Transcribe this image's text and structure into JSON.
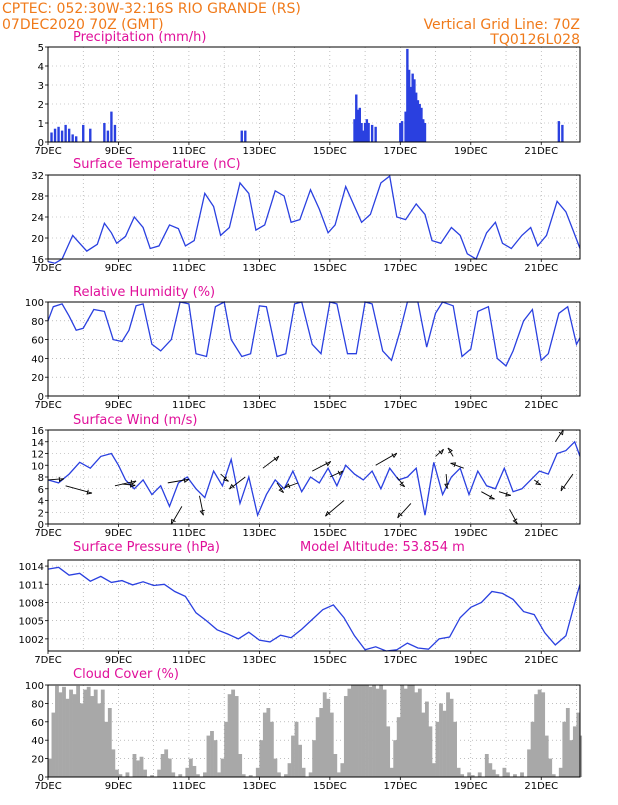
{
  "header": {
    "line1": "CPTEC:    052:30W-32:16S   RIO GRANDE (RS)",
    "line2": "07DEC2020 70Z (GMT)",
    "right1": "Vertical Grid Line: 70Z",
    "right2": "TQ0126L028",
    "altitude": "Model Altitude: 53.854  m"
  },
  "colors": {
    "header": "#f07a1a",
    "title": "#e0109a",
    "line": "#2a40e0",
    "bar": "#2a40e0",
    "cloud": "#a8a8a8",
    "grid": "#999999"
  },
  "x_axis": {
    "ticks": [
      {
        "day": 7,
        "label": "7DEC"
      },
      {
        "day": 9,
        "label": "9DEC"
      },
      {
        "day": 11,
        "label": "11DEC"
      },
      {
        "day": 13,
        "label": "13DEC"
      },
      {
        "day": 15,
        "label": "15DEC"
      },
      {
        "day": 17,
        "label": "17DEC"
      },
      {
        "day": 19,
        "label": "19DEC"
      },
      {
        "day": 21,
        "label": "21DEC"
      }
    ],
    "range": [
      7,
      22.1
    ]
  },
  "chart_data": [
    {
      "type": "bar",
      "title": "Precipitation (mm/h)",
      "x_unit": "day of month (DEC 2020)",
      "ylim": [
        0,
        5
      ],
      "yticks": [
        "0",
        "1",
        "2",
        "3",
        "4",
        "5"
      ],
      "x": [
        7.1,
        7.2,
        7.3,
        7.4,
        7.5,
        7.6,
        7.7,
        7.8,
        8.0,
        8.2,
        8.6,
        8.7,
        8.8,
        8.9,
        12.5,
        12.6,
        15.7,
        15.75,
        15.8,
        15.85,
        15.9,
        15.95,
        16.0,
        16.05,
        16.1,
        16.2,
        16.3,
        17.0,
        17.05,
        17.15,
        17.2,
        17.25,
        17.3,
        17.35,
        17.4,
        17.45,
        17.5,
        17.55,
        17.6,
        17.65,
        17.7,
        21.5,
        21.6
      ],
      "values": [
        0.5,
        0.7,
        0.8,
        0.6,
        0.9,
        0.7,
        0.4,
        0.3,
        0.9,
        0.7,
        1.0,
        0.6,
        1.6,
        0.9,
        0.6,
        0.6,
        1.2,
        2.5,
        1.7,
        1.8,
        1.0,
        0.6,
        1.0,
        1.2,
        1.0,
        0.9,
        0.8,
        1.0,
        1.1,
        1.6,
        4.9,
        3.8,
        2.9,
        3.6,
        3.3,
        2.6,
        2.2,
        2.0,
        1.8,
        1.2,
        1.0,
        1.1,
        0.9
      ]
    },
    {
      "type": "line",
      "title": "Surface Temperature (nC)",
      "ylim": [
        16,
        32
      ],
      "yticks": [
        "16",
        "20",
        "24",
        "28",
        "32"
      ],
      "x": [
        7.0,
        7.2,
        7.4,
        7.7,
        7.9,
        8.1,
        8.4,
        8.6,
        8.8,
        8.95,
        9.2,
        9.45,
        9.7,
        9.9,
        10.15,
        10.45,
        10.7,
        10.9,
        11.15,
        11.45,
        11.7,
        11.9,
        12.15,
        12.45,
        12.7,
        12.9,
        13.15,
        13.45,
        13.7,
        13.9,
        14.15,
        14.45,
        14.7,
        14.95,
        15.15,
        15.45,
        15.7,
        15.9,
        16.15,
        16.45,
        16.7,
        16.9,
        17.15,
        17.45,
        17.7,
        17.9,
        18.15,
        18.45,
        18.7,
        18.9,
        19.15,
        19.45,
        19.7,
        19.9,
        20.15,
        20.45,
        20.7,
        20.9,
        21.15,
        21.45,
        21.7,
        21.9,
        22.1
      ],
      "values": [
        15.5,
        15.2,
        16.0,
        20.5,
        19.0,
        17.5,
        18.8,
        22.8,
        21.0,
        19.0,
        20.3,
        24.0,
        22.0,
        18.0,
        18.5,
        22.5,
        21.8,
        18.5,
        19.5,
        28.5,
        26.0,
        20.5,
        22.0,
        30.5,
        28.5,
        21.5,
        22.5,
        29.0,
        28.0,
        23.0,
        23.5,
        29.2,
        25.5,
        21.0,
        22.5,
        29.8,
        26.0,
        23.0,
        24.5,
        30.5,
        31.8,
        24.0,
        23.5,
        26.5,
        24.5,
        19.5,
        19.0,
        22.0,
        20.5,
        17.0,
        16.0,
        21.0,
        23.0,
        19.0,
        18.0,
        20.5,
        22.0,
        18.5,
        20.5,
        27.0,
        25.0,
        21.5,
        18.0
      ]
    },
    {
      "type": "line",
      "title": "Relative Humidity (%)",
      "ylim": [
        0,
        100
      ],
      "yticks": [
        "0",
        "20",
        "40",
        "60",
        "80",
        "100"
      ],
      "x": [
        7.0,
        7.15,
        7.4,
        7.6,
        7.8,
        8.0,
        8.3,
        8.6,
        8.85,
        9.1,
        9.3,
        9.5,
        9.7,
        9.95,
        10.2,
        10.5,
        10.75,
        11.0,
        11.2,
        11.5,
        11.75,
        12.0,
        12.2,
        12.5,
        12.75,
        13.0,
        13.2,
        13.5,
        13.75,
        14.0,
        14.2,
        14.5,
        14.75,
        15.0,
        15.2,
        15.5,
        15.75,
        16.0,
        16.2,
        16.5,
        16.75,
        17.0,
        17.2,
        17.5,
        17.75,
        18.0,
        18.2,
        18.5,
        18.75,
        19.0,
        19.2,
        19.5,
        19.75,
        20.0,
        20.2,
        20.5,
        20.75,
        21.0,
        21.2,
        21.5,
        21.75,
        22.0,
        22.1
      ],
      "values": [
        80,
        95,
        98,
        85,
        70,
        72,
        92,
        90,
        60,
        58,
        70,
        96,
        98,
        55,
        48,
        60,
        100,
        98,
        45,
        42,
        95,
        100,
        60,
        42,
        45,
        96,
        95,
        42,
        45,
        98,
        100,
        55,
        45,
        100,
        98,
        45,
        45,
        100,
        98,
        48,
        38,
        70,
        100,
        100,
        52,
        88,
        100,
        96,
        42,
        50,
        90,
        95,
        40,
        32,
        48,
        80,
        92,
        38,
        45,
        88,
        95,
        55,
        62
      ]
    },
    {
      "type": "line",
      "title": "Surface Wind (m/s)",
      "ylim": [
        0,
        16
      ],
      "yticks": [
        "0",
        "2",
        "4",
        "6",
        "8",
        "10",
        "12",
        "14",
        "16"
      ],
      "x": [
        7.0,
        7.3,
        7.6,
        7.9,
        8.2,
        8.5,
        8.8,
        9.0,
        9.2,
        9.45,
        9.7,
        9.95,
        10.2,
        10.45,
        10.7,
        10.95,
        11.2,
        11.45,
        11.7,
        11.95,
        12.2,
        12.45,
        12.7,
        12.95,
        13.2,
        13.45,
        13.7,
        13.95,
        14.2,
        14.45,
        14.7,
        14.95,
        15.2,
        15.45,
        15.7,
        15.95,
        16.2,
        16.45,
        16.7,
        16.95,
        17.2,
        17.45,
        17.7,
        17.95,
        18.2,
        18.45,
        18.7,
        18.95,
        19.2,
        19.45,
        19.7,
        19.95,
        20.2,
        20.45,
        20.7,
        20.95,
        21.2,
        21.45,
        21.7,
        21.95,
        22.1
      ],
      "values": [
        7.5,
        7.0,
        8.5,
        10.5,
        9.5,
        11.5,
        12.0,
        10.0,
        7.5,
        6.0,
        7.5,
        5.0,
        6.5,
        3.0,
        7.0,
        8.0,
        6.0,
        4.5,
        9.0,
        6.5,
        11.0,
        3.5,
        8.0,
        1.5,
        5.0,
        7.5,
        6.0,
        9.0,
        5.5,
        8.0,
        7.0,
        9.5,
        6.5,
        10.0,
        8.5,
        7.5,
        9.0,
        6.0,
        9.5,
        7.5,
        8.0,
        9.5,
        1.5,
        10.5,
        5.0,
        8.0,
        9.5,
        5.0,
        9.0,
        6.5,
        6.0,
        9.5,
        5.5,
        6.0,
        7.5,
        9.0,
        8.5,
        12.0,
        12.5,
        14.0,
        11.5
      ],
      "arrows": [
        {
          "x": 7.0,
          "y": 7.5,
          "u": 1.2,
          "v": -0.1
        },
        {
          "x": 7.5,
          "y": 6.5,
          "u": 2.0,
          "v": 0.6
        },
        {
          "x": 8.9,
          "y": 6.5,
          "u": 1.6,
          "v": -0.4
        },
        {
          "x": 9.1,
          "y": 6.8,
          "u": 1.0,
          "v": 0.1
        },
        {
          "x": 10.4,
          "y": 7.0,
          "u": 1.6,
          "v": -0.3
        },
        {
          "x": 10.8,
          "y": 3.0,
          "u": -0.8,
          "v": 1.5
        },
        {
          "x": 11.3,
          "y": 4.8,
          "u": 0.3,
          "v": 1.6
        },
        {
          "x": 11.9,
          "y": 8.5,
          "u": 0.6,
          "v": 0.6
        },
        {
          "x": 12.6,
          "y": 8.0,
          "u": -1.2,
          "v": 1.0
        },
        {
          "x": 13.1,
          "y": 9.5,
          "u": 1.2,
          "v": -1.0
        },
        {
          "x": 13.5,
          "y": 7.0,
          "u": 0.5,
          "v": 0.8
        },
        {
          "x": 14.1,
          "y": 7.0,
          "u": -1.0,
          "v": 0.4
        },
        {
          "x": 14.5,
          "y": 9.0,
          "u": 1.4,
          "v": -0.8
        },
        {
          "x": 15.0,
          "y": 8.0,
          "u": 1.0,
          "v": -0.5
        },
        {
          "x": 15.4,
          "y": 4.0,
          "u": -1.4,
          "v": 1.3
        },
        {
          "x": 16.3,
          "y": 10.0,
          "u": 1.6,
          "v": -1.0
        },
        {
          "x": 16.9,
          "y": 8.0,
          "u": 0.6,
          "v": 0.8
        },
        {
          "x": 17.3,
          "y": 3.5,
          "u": -1.0,
          "v": 1.2
        },
        {
          "x": 18.0,
          "y": 11.5,
          "u": 0.6,
          "v": -0.6
        },
        {
          "x": 18.3,
          "y": 8.5,
          "u": 0.1,
          "v": 1.2
        },
        {
          "x": 18.5,
          "y": 11.5,
          "u": -0.4,
          "v": -0.7
        },
        {
          "x": 18.8,
          "y": 9.5,
          "u": -1.0,
          "v": -0.4
        },
        {
          "x": 19.3,
          "y": 5.5,
          "u": 1.0,
          "v": 0.6
        },
        {
          "x": 19.8,
          "y": 5.5,
          "u": 0.9,
          "v": 0.3
        },
        {
          "x": 20.1,
          "y": 2.5,
          "u": 0.6,
          "v": 1.2
        },
        {
          "x": 20.8,
          "y": 7.5,
          "u": 0.5,
          "v": 0.4
        },
        {
          "x": 21.4,
          "y": 14.0,
          "u": 0.6,
          "v": -1.0
        },
        {
          "x": 21.9,
          "y": 8.5,
          "u": -0.9,
          "v": 1.4
        }
      ]
    },
    {
      "type": "line",
      "title": "Surface Pressure (hPa)",
      "ylim": [
        1000,
        1015
      ],
      "yticks": [
        "1002",
        "1005",
        "1008",
        "1011",
        "1014"
      ],
      "x": [
        7.0,
        7.3,
        7.6,
        7.9,
        8.2,
        8.5,
        8.8,
        9.1,
        9.4,
        9.7,
        10.0,
        10.3,
        10.6,
        10.9,
        11.2,
        11.5,
        11.8,
        12.1,
        12.4,
        12.7,
        13.0,
        13.3,
        13.6,
        13.9,
        14.2,
        14.5,
        14.8,
        15.1,
        15.4,
        15.7,
        16.0,
        16.3,
        16.6,
        16.9,
        17.2,
        17.5,
        17.8,
        18.1,
        18.4,
        18.7,
        19.0,
        19.3,
        19.6,
        19.9,
        20.2,
        20.5,
        20.8,
        21.1,
        21.4,
        21.7,
        22.0,
        22.1
      ],
      "values": [
        1013.5,
        1013.8,
        1012.5,
        1012.8,
        1011.5,
        1012.3,
        1011.3,
        1011.6,
        1010.9,
        1011.4,
        1010.8,
        1011.0,
        1009.8,
        1009.0,
        1006.3,
        1005.0,
        1003.5,
        1002.8,
        1002.0,
        1003.1,
        1001.8,
        1001.5,
        1002.6,
        1002.2,
        1003.6,
        1005.2,
        1006.8,
        1007.6,
        1005.5,
        1002.5,
        1000.2,
        1000.7,
        1000.0,
        1000.2,
        1001.3,
        1000.5,
        1000.3,
        1002.0,
        1002.3,
        1005.5,
        1007.2,
        1008.0,
        1009.8,
        1009.5,
        1008.5,
        1006.5,
        1006.0,
        1003.0,
        1001.0,
        1002.5,
        1009.0,
        1011.0
      ]
    },
    {
      "type": "bar",
      "title": "Cloud Cover (%)",
      "ylim": [
        0,
        100
      ],
      "yticks": [
        "0",
        "20",
        "40",
        "60",
        "80",
        "100"
      ],
      "segments": [
        [
          7.0,
          20
        ],
        [
          7.1,
          70
        ],
        [
          7.2,
          99
        ],
        [
          7.3,
          92
        ],
        [
          7.4,
          98
        ],
        [
          7.5,
          85
        ],
        [
          7.6,
          95
        ],
        [
          7.7,
          90
        ],
        [
          7.8,
          99
        ],
        [
          7.9,
          80
        ],
        [
          8.0,
          95
        ],
        [
          8.1,
          98
        ],
        [
          8.2,
          88
        ],
        [
          8.3,
          95
        ],
        [
          8.4,
          80
        ],
        [
          8.5,
          95
        ],
        [
          8.6,
          60
        ],
        [
          8.7,
          75
        ],
        [
          8.8,
          30
        ],
        [
          8.9,
          8
        ],
        [
          9.0,
          3
        ],
        [
          9.2,
          5
        ],
        [
          9.4,
          25
        ],
        [
          9.5,
          18
        ],
        [
          9.6,
          22
        ],
        [
          9.7,
          8
        ],
        [
          9.9,
          2
        ],
        [
          10.1,
          8
        ],
        [
          10.2,
          25
        ],
        [
          10.3,
          30
        ],
        [
          10.4,
          20
        ],
        [
          10.5,
          5
        ],
        [
          10.7,
          3
        ],
        [
          10.9,
          10
        ],
        [
          11.0,
          20
        ],
        [
          11.1,
          12
        ],
        [
          11.2,
          3
        ],
        [
          11.4,
          5
        ],
        [
          11.5,
          45
        ],
        [
          11.6,
          50
        ],
        [
          11.7,
          40
        ],
        [
          11.8,
          5
        ],
        [
          11.9,
          20
        ],
        [
          12.0,
          60
        ],
        [
          12.1,
          90
        ],
        [
          12.2,
          95
        ],
        [
          12.3,
          88
        ],
        [
          12.4,
          25
        ],
        [
          12.5,
          3
        ],
        [
          12.7,
          2
        ],
        [
          12.9,
          10
        ],
        [
          13.0,
          40
        ],
        [
          13.1,
          70
        ],
        [
          13.2,
          75
        ],
        [
          13.3,
          60
        ],
        [
          13.4,
          20
        ],
        [
          13.5,
          5
        ],
        [
          13.7,
          3
        ],
        [
          13.8,
          15
        ],
        [
          13.9,
          45
        ],
        [
          14.0,
          60
        ],
        [
          14.1,
          35
        ],
        [
          14.2,
          10
        ],
        [
          14.4,
          5
        ],
        [
          14.5,
          40
        ],
        [
          14.6,
          65
        ],
        [
          14.7,
          75
        ],
        [
          14.8,
          92
        ],
        [
          14.9,
          85
        ],
        [
          15.0,
          70
        ],
        [
          15.1,
          25
        ],
        [
          15.2,
          5
        ],
        [
          15.3,
          15
        ],
        [
          15.4,
          88
        ],
        [
          15.5,
          96
        ],
        [
          15.6,
          100
        ],
        [
          15.7,
          100
        ],
        [
          15.8,
          100
        ],
        [
          15.9,
          100
        ],
        [
          16.0,
          100
        ],
        [
          16.1,
          98
        ],
        [
          16.2,
          100
        ],
        [
          16.3,
          96
        ],
        [
          16.4,
          100
        ],
        [
          16.5,
          95
        ],
        [
          16.6,
          55
        ],
        [
          16.7,
          10
        ],
        [
          16.8,
          40
        ],
        [
          16.9,
          65
        ],
        [
          17.0,
          100
        ],
        [
          17.1,
          96
        ],
        [
          17.2,
          100
        ],
        [
          17.3,
          100
        ],
        [
          17.4,
          92
        ],
        [
          17.5,
          96
        ],
        [
          17.6,
          70
        ],
        [
          17.7,
          82
        ],
        [
          17.8,
          55
        ],
        [
          17.9,
          15
        ],
        [
          18.0,
          60
        ],
        [
          18.1,
          80
        ],
        [
          18.2,
          72
        ],
        [
          18.3,
          92
        ],
        [
          18.4,
          85
        ],
        [
          18.5,
          60
        ],
        [
          18.6,
          10
        ],
        [
          18.7,
          3
        ],
        [
          18.9,
          5
        ],
        [
          19.0,
          2
        ],
        [
          19.2,
          5
        ],
        [
          19.4,
          25
        ],
        [
          19.5,
          15
        ],
        [
          19.6,
          8
        ],
        [
          19.7,
          3
        ],
        [
          19.9,
          10
        ],
        [
          20.0,
          5
        ],
        [
          20.2,
          3
        ],
        [
          20.4,
          5
        ],
        [
          20.6,
          30
        ],
        [
          20.7,
          60
        ],
        [
          20.8,
          90
        ],
        [
          20.9,
          95
        ],
        [
          21.0,
          92
        ],
        [
          21.1,
          45
        ],
        [
          21.2,
          20
        ],
        [
          21.3,
          3
        ],
        [
          21.5,
          10
        ],
        [
          21.6,
          60
        ],
        [
          21.7,
          75
        ],
        [
          21.8,
          40
        ],
        [
          21.9,
          55
        ],
        [
          22.0,
          70
        ],
        [
          22.05,
          45
        ]
      ]
    }
  ]
}
